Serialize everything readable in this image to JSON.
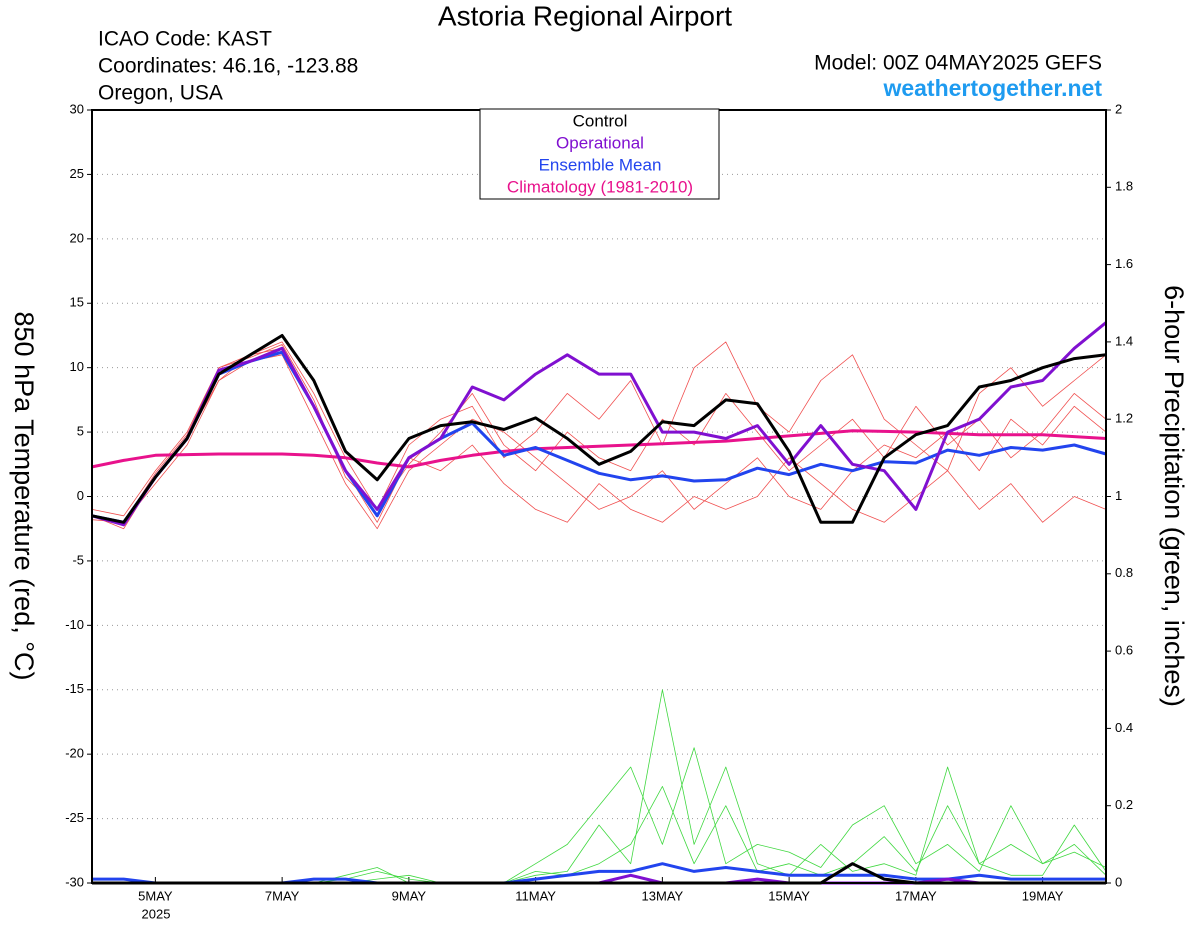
{
  "chart_data": {
    "type": "line",
    "title": "Astoria Regional Airport",
    "info_left": [
      "ICAO Code: KAST",
      "Coordinates: 46.16, -123.88",
      "Oregon, USA"
    ],
    "model": "Model: 00Z 04MAY2025 GEFS",
    "site": "weathertogether.net",
    "ylabel": "850 hPa Temperature (red, °C)",
    "y2label": "6-hour Precipitation (green, inches)",
    "year_label": "2025",
    "xlim": [
      4,
      20
    ],
    "xticks": [
      {
        "value": 5,
        "label": "5MAY"
      },
      {
        "value": 7,
        "label": "7MAY"
      },
      {
        "value": 9,
        "label": "9MAY"
      },
      {
        "value": 11,
        "label": "11MAY"
      },
      {
        "value": 13,
        "label": "13MAY"
      },
      {
        "value": 15,
        "label": "15MAY"
      },
      {
        "value": 17,
        "label": "17MAY"
      },
      {
        "value": 19,
        "label": "19MAY"
      }
    ],
    "ylim": [
      -30,
      30
    ],
    "yticks": [
      -30,
      -25,
      -20,
      -15,
      -10,
      -5,
      0,
      5,
      10,
      15,
      20,
      25,
      30
    ],
    "y2lim": [
      0,
      2
    ],
    "y2ticks": [
      0,
      0.2,
      0.4,
      0.6,
      0.8,
      1,
      1.2,
      1.4,
      1.6,
      1.8,
      2
    ],
    "grid": true,
    "legend": "top",
    "x": [
      4,
      4.5,
      5,
      5.5,
      6,
      6.5,
      7,
      7.5,
      8,
      8.5,
      9,
      9.5,
      10,
      10.5,
      11,
      11.5,
      12,
      12.5,
      13,
      13.5,
      14,
      14.5,
      15,
      15.5,
      16,
      16.5,
      17,
      17.5,
      18,
      18.5,
      19,
      19.5,
      20
    ],
    "series": [
      {
        "color": "#f05050",
        "values": [
          -1.5,
          -2,
          1,
          4,
          9,
          10.5,
          11,
          6,
          1,
          -2.5,
          2,
          4,
          6,
          5,
          3,
          1,
          -1,
          0,
          2,
          -1,
          1,
          3,
          0,
          -1,
          2,
          4,
          3,
          5,
          2,
          6,
          4,
          7,
          5
        ]
      },
      {
        "color": "#f05050",
        "values": [
          -1,
          -1.5,
          2,
          5,
          10,
          11,
          12,
          8,
          3,
          -1,
          4,
          6,
          7,
          3,
          5,
          8,
          6,
          9,
          4,
          10,
          12,
          7,
          5,
          9,
          11,
          6,
          4,
          2,
          8,
          10,
          7,
          9,
          11
        ]
      },
      {
        "color": "#f05050",
        "values": [
          -1.5,
          -2.5,
          1.5,
          4.5,
          9,
          11,
          11.5,
          7,
          2,
          -2,
          3,
          2,
          4,
          1,
          -1,
          -2,
          1,
          -1,
          -2,
          0,
          -1,
          0,
          3,
          1,
          -1,
          -2,
          0,
          2,
          -1,
          1,
          -2,
          0,
          -1
        ]
      },
      {
        "color": "#f05050",
        "values": [
          -1.8,
          -2,
          1.8,
          4.8,
          10,
          10.8,
          11.8,
          7.5,
          1.5,
          -1,
          2.5,
          5,
          8,
          4,
          2,
          5,
          3,
          2,
          6,
          4,
          8,
          5,
          2,
          4,
          6,
          3,
          7,
          4,
          6,
          3,
          5,
          8,
          6
        ]
      },
      {
        "color": "#40d840",
        "axis": "y2",
        "values": [
          0,
          0,
          0,
          0,
          0,
          0,
          0,
          0,
          0.01,
          0.03,
          0.01,
          0,
          0,
          0,
          0.02,
          0.03,
          0.15,
          0.05,
          0.5,
          0.1,
          0.3,
          0.05,
          0.02,
          0.1,
          0.03,
          0.05,
          0.02,
          0.3,
          0.05,
          0.02,
          0.02,
          0.15,
          0.03
        ]
      },
      {
        "color": "#40d840",
        "axis": "y2",
        "values": [
          0,
          0,
          0,
          0,
          0,
          0,
          0,
          0,
          0.02,
          0.04,
          0,
          0,
          0,
          0,
          0.05,
          0.1,
          0.2,
          0.3,
          0.1,
          0.35,
          0.05,
          0.1,
          0.08,
          0.04,
          0.15,
          0.2,
          0.05,
          0.1,
          0.03,
          0.2,
          0.05,
          0.1,
          0.02
        ]
      },
      {
        "color": "#40d840",
        "axis": "y2",
        "values": [
          0,
          0,
          0,
          0,
          0,
          0,
          0,
          0,
          0,
          0.01,
          0.02,
          0,
          0,
          0,
          0.03,
          0.02,
          0.05,
          0.1,
          0.25,
          0.05,
          0.2,
          0.03,
          0.05,
          0.02,
          0.05,
          0.12,
          0.03,
          0.2,
          0.05,
          0.1,
          0.05,
          0.08,
          0.04
        ]
      },
      {
        "name": "Climatology (1981-2010)",
        "color": "#e8128c",
        "values": [
          2.3,
          2.8,
          3.2,
          3.25,
          3.3,
          3.3,
          3.3,
          3.2,
          3,
          2.6,
          2.3,
          2.8,
          3.2,
          3.5,
          3.7,
          3.8,
          3.9,
          4,
          4.1,
          4.2,
          4.3,
          4.5,
          4.7,
          4.9,
          5.1,
          5.05,
          5,
          4.9,
          4.8,
          4.8,
          4.8,
          4.65,
          4.5
        ]
      },
      {
        "name": "Ensemble Mean",
        "color": "#2244ee",
        "values": [
          -1.5,
          -2,
          1.5,
          4.5,
          9.5,
          10.5,
          11.2,
          7,
          2,
          -1.5,
          3,
          4.5,
          5.7,
          3.2,
          3.8,
          2.8,
          1.8,
          1.3,
          1.6,
          1.2,
          1.3,
          2.2,
          1.7,
          2.5,
          2,
          2.7,
          2.6,
          3.6,
          3.2,
          3.8,
          3.6,
          4,
          3.3
        ]
      },
      {
        "color": "#2244ee",
        "axis": "y2",
        "values": [
          0.01,
          0.01,
          0,
          0,
          0,
          0,
          0,
          0.01,
          0.01,
          0,
          0,
          0,
          0,
          0,
          0.01,
          0.02,
          0.03,
          0.03,
          0.05,
          0.03,
          0.04,
          0.03,
          0.02,
          0.02,
          0.02,
          0.02,
          0.01,
          0.01,
          0.02,
          0.01,
          0.01,
          0.01,
          0.01
        ]
      },
      {
        "name": "Operational",
        "color": "#8010d0",
        "values": [
          -1.5,
          -2.2,
          1.5,
          4.5,
          9.8,
          10.5,
          11.5,
          7,
          2,
          -1,
          3,
          4.5,
          8.5,
          7.5,
          9.5,
          11,
          9.5,
          9.5,
          5,
          5,
          4.5,
          5.5,
          2.5,
          5.5,
          2.5,
          2,
          -1,
          5,
          6,
          8.5,
          9,
          11.5,
          13.5
        ]
      },
      {
        "color": "#8010d0",
        "axis": "y2",
        "values": [
          0,
          0,
          0,
          0,
          0,
          0,
          0,
          0,
          0,
          0,
          0,
          0,
          0,
          0,
          0,
          0,
          0,
          0.02,
          0,
          0,
          0,
          0.01,
          0,
          0,
          0,
          0,
          0,
          0.01,
          0,
          0,
          0,
          0,
          0
        ]
      },
      {
        "name": "Control",
        "color": "#000000",
        "values": [
          -1.5,
          -2,
          1.5,
          4.5,
          9.5,
          11,
          12.5,
          9,
          3.5,
          1.3,
          4.5,
          5.5,
          5.8,
          5.2,
          6.1,
          4.5,
          2.5,
          3.5,
          5.8,
          5.5,
          7.5,
          7.2,
          3.5,
          -2,
          -2,
          3,
          4.8,
          5.5,
          8.5,
          9,
          10,
          10.7,
          11
        ]
      },
      {
        "color": "#000000",
        "axis": "y2",
        "values": [
          0,
          0,
          0,
          0,
          0,
          0,
          0,
          0,
          0,
          0,
          0,
          0,
          0,
          0,
          0,
          0,
          0,
          0,
          0,
          0,
          0,
          0,
          0,
          0,
          0.05,
          0.01,
          0,
          0,
          0,
          0,
          0,
          0,
          0
        ]
      }
    ]
  }
}
